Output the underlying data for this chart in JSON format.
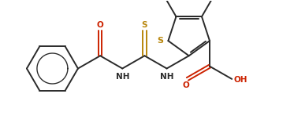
{
  "bg_color": "#ffffff",
  "line_color": "#2a2a2a",
  "s_color": "#b8860b",
  "o_color": "#cc2200",
  "line_width": 1.4,
  "figsize": [
    3.73,
    1.75
  ],
  "dpi": 100,
  "xlim": [
    0,
    10
  ],
  "ylim": [
    0,
    4.7
  ],
  "font_size": 7.5,
  "inner_circle_ratio": 0.6
}
